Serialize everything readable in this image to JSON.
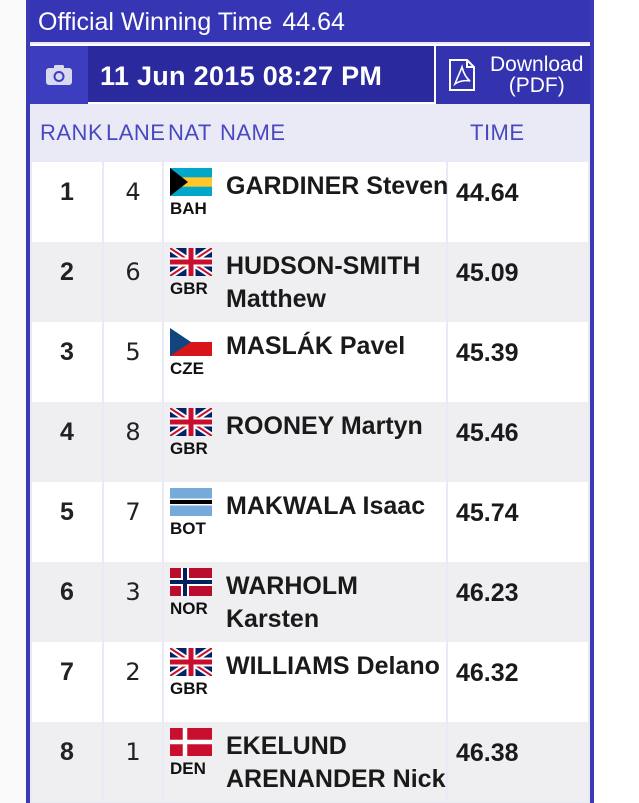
{
  "header": {
    "title_label": "Official Winning Time",
    "title_value": "44.64",
    "date": "11 Jun 2015 08:27 PM",
    "download_line1": "Download",
    "download_line2": "(PDF)"
  },
  "columns": {
    "rank": "RANK",
    "lane": "LANE",
    "nat": "NAT",
    "name": "NAME",
    "time": "TIME"
  },
  "results": [
    {
      "rank": "1",
      "lane": "4",
      "nat": "BAH",
      "name": "GARDINER Steven",
      "time": "44.64"
    },
    {
      "rank": "2",
      "lane": "6",
      "nat": "GBR",
      "name": "HUDSON-SMITH Matthew",
      "time": "45.09"
    },
    {
      "rank": "3",
      "lane": "5",
      "nat": "CZE",
      "name": "MASLÁK Pavel",
      "time": "45.39"
    },
    {
      "rank": "4",
      "lane": "8",
      "nat": "GBR",
      "name": "ROONEY Martyn",
      "time": "45.46"
    },
    {
      "rank": "5",
      "lane": "7",
      "nat": "BOT",
      "name": "MAKWALA Isaac",
      "time": "45.74"
    },
    {
      "rank": "6",
      "lane": "3",
      "nat": "NOR",
      "name": "WARHOLM Karsten",
      "time": "46.23"
    },
    {
      "rank": "7",
      "lane": "2",
      "nat": "GBR",
      "name": "WILLIAMS Delano",
      "time": "46.32"
    },
    {
      "rank": "8",
      "lane": "1",
      "nat": "DEN",
      "name": "EKELUND ARENANDER Nick",
      "time": "46.38"
    }
  ],
  "colors": {
    "accent": "#3636b4",
    "header_dark": "#2a2a9e",
    "column_header_text": "#4848c0",
    "panel_bg": "#eaeaf6"
  },
  "icons": {
    "camera": "camera-icon",
    "pdf": "pdf-file-icon"
  }
}
